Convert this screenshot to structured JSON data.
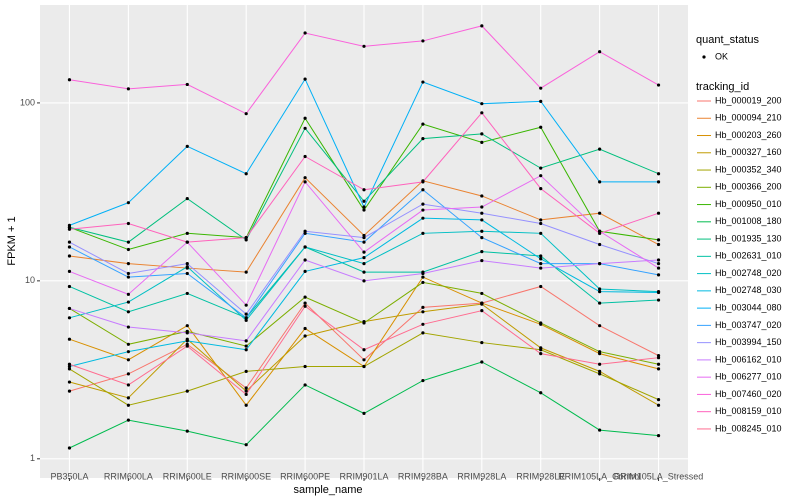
{
  "chart_data": {
    "type": "line",
    "x_label": "sample_name",
    "y_label": "FPKM + 1",
    "log_y": true,
    "grid": true,
    "categories": [
      "PB350LA",
      "RRIM600LA",
      "RRIM600LE",
      "RRIM600SE",
      "RRIM600PE",
      "RRIM901LA",
      "RRIM928BA",
      "RRIM928LA",
      "RRIM928LE",
      "RRIM105LA_Control",
      "RRIM105LA_Stressed"
    ],
    "ylim": [
      0.78,
      355
    ],
    "yticks": [
      1,
      10,
      100
    ],
    "shape_legend": {
      "title": "quant_status",
      "entries": [
        "OK"
      ]
    },
    "legend_title": "tracking_id",
    "series": [
      {
        "name": "Hb_000019_200",
        "color": "#F8766D",
        "values": [
          2.4,
          3.0,
          4.4,
          2.5,
          7.5,
          3.6,
          7.1,
          7.5,
          9.3,
          5.6,
          3.8
        ]
      },
      {
        "name": "Hb_000094_210",
        "color": "#EA8331",
        "values": [
          13.8,
          12.5,
          11.8,
          11.2,
          38,
          18,
          36.5,
          30,
          22,
          24,
          16
        ]
      },
      {
        "name": "Hb_000203_260",
        "color": "#D89000",
        "values": [
          4.7,
          3.6,
          5.6,
          2.0,
          5.4,
          3.3,
          10.5,
          7.5,
          5.7,
          3.9,
          3.2
        ]
      },
      {
        "name": "Hb_000327_160",
        "color": "#C09B00",
        "values": [
          2.7,
          2.2,
          4.7,
          2.4,
          4.9,
          5.9,
          6.7,
          7.4,
          4.2,
          3.1,
          2.0
        ]
      },
      {
        "name": "Hb_000352_340",
        "color": "#A3A500",
        "values": [
          3.2,
          2.0,
          2.4,
          3.1,
          3.3,
          3.3,
          5.1,
          4.5,
          4.1,
          3.0,
          2.15
        ]
      },
      {
        "name": "Hb_000366_200",
        "color": "#7CAE00",
        "values": [
          7.0,
          4.4,
          5.2,
          4.3,
          8.1,
          5.8,
          9.8,
          8.5,
          5.8,
          4.0,
          3.4
        ]
      },
      {
        "name": "Hb_000950_010",
        "color": "#39B600",
        "values": [
          20,
          15,
          18.5,
          17.5,
          82,
          25,
          76,
          60,
          73,
          19,
          17
        ]
      },
      {
        "name": "Hb_001008_180",
        "color": "#00BB4E",
        "values": [
          1.15,
          1.65,
          1.43,
          1.2,
          2.6,
          1.8,
          2.75,
          3.5,
          2.35,
          1.45,
          1.35
        ]
      },
      {
        "name": "Hb_001935_130",
        "color": "#00BF7D",
        "values": [
          20,
          16.5,
          29,
          17,
          72,
          28,
          63,
          67,
          43,
          55,
          40
        ]
      },
      {
        "name": "Hb_002631_010",
        "color": "#00C1A3",
        "values": [
          9.3,
          6.7,
          8.5,
          6.2,
          15.5,
          11.2,
          11.2,
          14.6,
          13.8,
          7.5,
          7.8
        ]
      },
      {
        "name": "Hb_002748_020",
        "color": "#00BFC4",
        "values": [
          6.2,
          7.6,
          12.0,
          6.0,
          15.5,
          12.5,
          18.5,
          19,
          18.5,
          9.0,
          8.7
        ]
      },
      {
        "name": "Hb_002748_030",
        "color": "#00BAE0",
        "values": [
          3.3,
          4.0,
          4.6,
          4.1,
          11.3,
          13.5,
          22.5,
          22,
          13.3,
          8.7,
          8.6
        ]
      },
      {
        "name": "Hb_003044_080",
        "color": "#00B0F6",
        "values": [
          20.5,
          27.5,
          57,
          40,
          136,
          26,
          131,
          99,
          102,
          36,
          36
        ]
      },
      {
        "name": "Hb_003747_020",
        "color": "#35A2FF",
        "values": [
          15.5,
          10.5,
          11.0,
          6.2,
          18.5,
          16.5,
          32.5,
          17.5,
          12.5,
          12.5,
          10.8
        ]
      },
      {
        "name": "Hb_003994_150",
        "color": "#9590FF",
        "values": [
          16.5,
          11.0,
          12.5,
          6.5,
          19,
          17.5,
          27,
          24,
          21,
          16,
          12.5
        ]
      },
      {
        "name": "Hb_006162_010",
        "color": "#C77CFF",
        "values": [
          7.0,
          5.5,
          5.1,
          4.6,
          13.1,
          10.0,
          11.0,
          13.0,
          11.8,
          12.5,
          13.1
        ]
      },
      {
        "name": "Hb_006277_010",
        "color": "#E76BF3",
        "values": [
          11.3,
          8.4,
          16.5,
          7.3,
          36,
          14.5,
          25,
          26,
          39,
          19,
          11.8
        ]
      },
      {
        "name": "Hb_007460_020",
        "color": "#FA62DB",
        "values": [
          135,
          120,
          127,
          87,
          247,
          208,
          223,
          271,
          121,
          194,
          126
        ]
      },
      {
        "name": "Hb_008159_010",
        "color": "#FF62BC",
        "values": [
          19.5,
          21,
          16.5,
          17.5,
          50,
          32.5,
          36,
          88,
          33,
          18.5,
          24
        ]
      },
      {
        "name": "Hb_008245_010",
        "color": "#FF6C90",
        "values": [
          3.4,
          2.6,
          4.3,
          2.3,
          7.2,
          4.1,
          5.7,
          6.8,
          3.9,
          3.4,
          3.7
        ]
      }
    ]
  }
}
